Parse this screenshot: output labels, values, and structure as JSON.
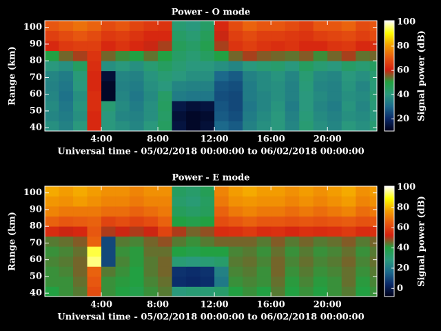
{
  "chart_data": [
    {
      "type": "heatmap",
      "title": "Power - O mode",
      "xlabel": "Universal time - 05/02/2018 00:00:00 to 06/02/2018 00:00:00",
      "ylabel": "Range (km)",
      "colorbar_label": "Signal power (dB)",
      "x_edges": [
        0,
        1,
        2,
        3,
        4,
        5,
        6,
        7,
        8,
        9,
        10,
        11,
        12,
        13,
        14,
        15,
        16,
        17,
        18,
        19,
        20,
        21,
        22,
        23,
        23.5
      ],
      "y_edges": [
        38,
        44,
        50,
        56,
        62,
        68,
        74,
        80,
        86,
        92,
        98,
        104
      ],
      "values": [
        [
          38,
          35,
          40,
          62,
          40,
          38,
          36,
          40,
          45,
          15,
          12,
          14,
          30,
          28,
          35,
          38,
          40,
          36,
          42,
          38,
          36,
          40,
          38,
          42
        ],
        [
          36,
          34,
          38,
          62,
          40,
          36,
          35,
          38,
          44,
          14,
          12,
          13,
          28,
          26,
          34,
          37,
          40,
          35,
          41,
          37,
          35,
          38,
          37,
          40
        ],
        [
          37,
          33,
          39,
          63,
          42,
          37,
          34,
          38,
          45,
          16,
          14,
          15,
          27,
          25,
          33,
          36,
          39,
          34,
          40,
          36,
          34,
          39,
          36,
          41
        ],
        [
          36,
          32,
          38,
          63,
          12,
          36,
          33,
          37,
          44,
          34,
          33,
          33,
          26,
          25,
          34,
          36,
          38,
          35,
          40,
          37,
          35,
          38,
          37,
          42
        ],
        [
          35,
          33,
          40,
          62,
          12,
          35,
          34,
          38,
          40,
          36,
          35,
          35,
          27,
          26,
          34,
          37,
          38,
          35,
          41,
          36,
          35,
          39,
          36,
          41
        ],
        [
          36,
          34,
          41,
          62,
          14,
          36,
          35,
          39,
          42,
          40,
          38,
          38,
          30,
          28,
          35,
          37,
          39,
          36,
          42,
          37,
          36,
          40,
          38,
          42
        ],
        [
          40,
          38,
          45,
          63,
          38,
          40,
          38,
          42,
          45,
          42,
          40,
          40,
          38,
          36,
          40,
          42,
          43,
          40,
          45,
          42,
          40,
          44,
          42,
          45
        ],
        [
          50,
          55,
          58,
          64,
          55,
          52,
          50,
          54,
          50,
          44,
          42,
          45,
          50,
          55,
          58,
          56,
          55,
          54,
          56,
          52,
          55,
          58,
          54,
          55
        ],
        [
          62,
          65,
          66,
          66,
          62,
          64,
          62,
          60,
          58,
          46,
          44,
          48,
          58,
          64,
          66,
          64,
          63,
          64,
          62,
          62,
          64,
          65,
          62,
          63
        ],
        [
          66,
          68,
          70,
          68,
          65,
          66,
          64,
          62,
          62,
          44,
          42,
          46,
          60,
          66,
          68,
          66,
          66,
          65,
          64,
          66,
          67,
          68,
          66,
          68
        ],
        [
          70,
          72,
          74,
          72,
          68,
          70,
          67,
          65,
          64,
          42,
          40,
          44,
          62,
          68,
          72,
          70,
          70,
          68,
          66,
          70,
          70,
          72,
          68,
          70
        ]
      ],
      "xlim": [
        0,
        23.5
      ],
      "ylim": [
        38,
        104
      ],
      "xticks": [
        {
          "value": 4,
          "label": "4:00"
        },
        {
          "value": 8,
          "label": "8:00"
        },
        {
          "value": 12,
          "label": "12:00"
        },
        {
          "value": 16,
          "label": "16:00"
        },
        {
          "value": 20,
          "label": "20:00"
        }
      ],
      "yticks": [
        40,
        50,
        60,
        70,
        80,
        90,
        100
      ],
      "clim": [
        10,
        101
      ],
      "cticks": [
        20,
        40,
        60,
        80,
        100
      ],
      "colormap": [
        "#000018",
        "#0a2868",
        "#1c6a8c",
        "#2a9a7c",
        "#22a040",
        "#d42010",
        "#e85a10",
        "#f4a000",
        "#ffff00",
        "#ffffff"
      ]
    },
    {
      "type": "heatmap",
      "title": "Power - E mode",
      "xlabel": "Universal time - 05/02/2018 00:00:00 to 06/02/2018 00:00:00",
      "ylabel": "Range (km)",
      "colorbar_label": "Signal power (dB)",
      "x_edges": [
        0,
        1,
        2,
        3,
        4,
        5,
        6,
        7,
        8,
        9,
        10,
        11,
        12,
        13,
        14,
        15,
        16,
        17,
        18,
        19,
        20,
        21,
        22,
        23,
        23.5
      ],
      "y_edges": [
        38,
        44,
        50,
        56,
        62,
        68,
        74,
        80,
        86,
        92,
        98,
        104
      ],
      "values": [
        [
          40,
          42,
          44,
          62,
          42,
          40,
          38,
          42,
          44,
          28,
          30,
          30,
          32,
          40,
          42,
          40,
          44,
          40,
          42,
          40,
          42,
          44,
          40,
          42
        ],
        [
          42,
          42,
          45,
          64,
          42,
          41,
          40,
          43,
          45,
          5,
          4,
          5,
          20,
          42,
          43,
          42,
          45,
          41,
          43,
          41,
          42,
          45,
          41,
          43
        ],
        [
          42,
          43,
          46,
          66,
          44,
          42,
          40,
          44,
          46,
          6,
          5,
          6,
          22,
          43,
          44,
          42,
          46,
          42,
          44,
          42,
          43,
          45,
          42,
          44
        ],
        [
          43,
          44,
          46,
          95,
          10,
          43,
          41,
          44,
          46,
          30,
          28,
          30,
          32,
          44,
          45,
          43,
          46,
          43,
          45,
          43,
          44,
          46,
          43,
          45
        ],
        [
          42,
          43,
          45,
          92,
          10,
          42,
          41,
          45,
          45,
          40,
          38,
          40,
          40,
          43,
          44,
          42,
          45,
          42,
          44,
          42,
          43,
          45,
          42,
          44
        ],
        [
          44,
          45,
          47,
          66,
          10,
          44,
          43,
          46,
          48,
          44,
          42,
          44,
          46,
          46,
          46,
          44,
          47,
          44,
          46,
          44,
          45,
          47,
          44,
          46
        ],
        [
          55,
          52,
          54,
          64,
          50,
          52,
          50,
          52,
          60,
          50,
          46,
          48,
          55,
          56,
          58,
          55,
          56,
          54,
          56,
          55,
          56,
          58,
          55,
          56
        ],
        [
          66,
          64,
          65,
          66,
          60,
          62,
          60,
          62,
          66,
          40,
          38,
          40,
          62,
          64,
          66,
          64,
          64,
          63,
          64,
          63,
          64,
          65,
          63,
          64
        ],
        [
          72,
          70,
          70,
          70,
          68,
          68,
          66,
          68,
          70,
          35,
          33,
          35,
          66,
          70,
          72,
          70,
          70,
          68,
          70,
          68,
          70,
          72,
          68,
          70
        ],
        [
          75,
          74,
          76,
          74,
          72,
          72,
          70,
          72,
          72,
          32,
          30,
          34,
          70,
          74,
          75,
          74,
          74,
          72,
          74,
          72,
          74,
          76,
          72,
          74
        ],
        [
          78,
          76,
          78,
          76,
          74,
          74,
          72,
          74,
          74,
          34,
          32,
          36,
          72,
          76,
          78,
          76,
          76,
          74,
          76,
          74,
          76,
          78,
          74,
          76
        ]
      ],
      "xlim": [
        0,
        23.5
      ],
      "ylim": [
        38,
        104
      ],
      "xticks": [
        {
          "value": 4,
          "label": "4:00"
        },
        {
          "value": 8,
          "label": "8:00"
        },
        {
          "value": 12,
          "label": "12:00"
        },
        {
          "value": 16,
          "label": "16:00"
        },
        {
          "value": 20,
          "label": "20:00"
        }
      ],
      "yticks": [
        40,
        50,
        60,
        70,
        80,
        90,
        100
      ],
      "clim": [
        -8,
        101
      ],
      "cticks": [
        0,
        20,
        40,
        60,
        80,
        100
      ],
      "colormap": [
        "#000018",
        "#0a2868",
        "#1c6a8c",
        "#2a9a7c",
        "#22a040",
        "#d42010",
        "#e85a10",
        "#f4a000",
        "#ffff00",
        "#ffffff"
      ]
    }
  ]
}
